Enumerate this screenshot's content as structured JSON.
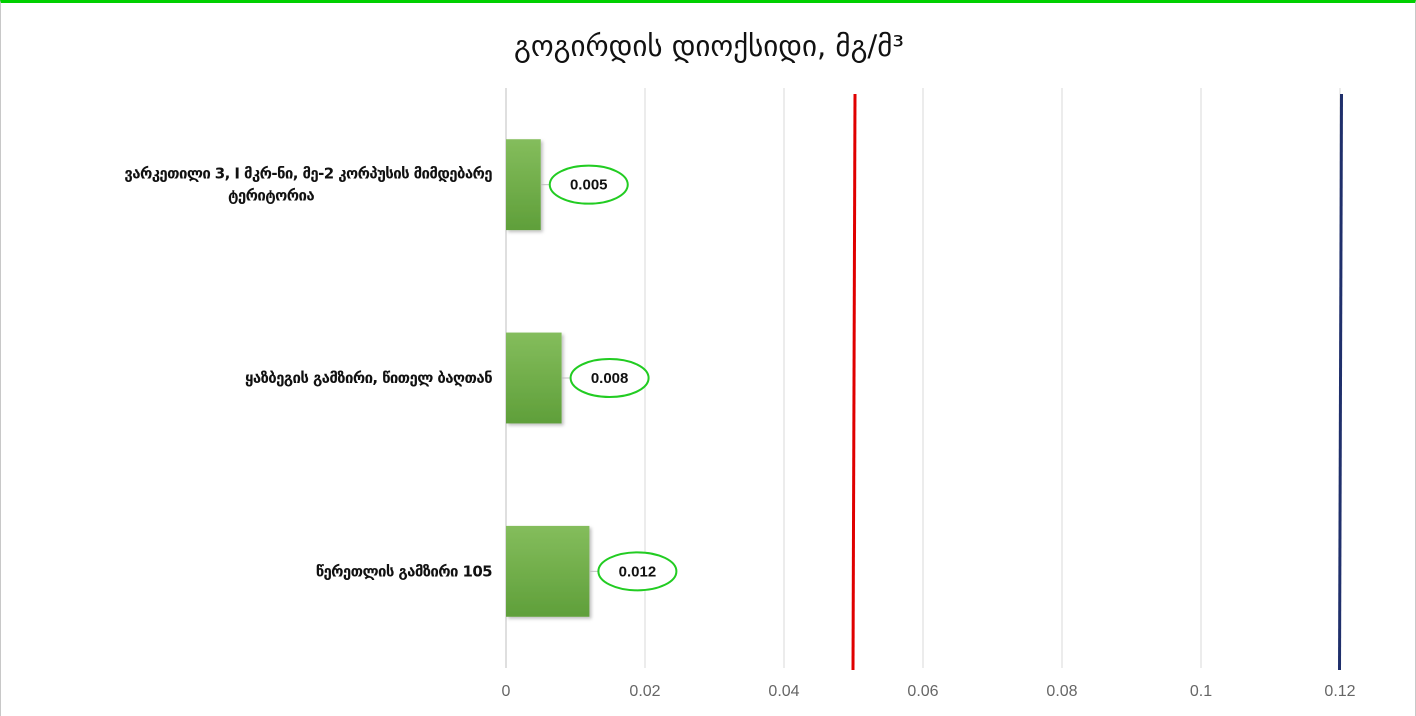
{
  "chart_data": {
    "type": "bar",
    "orientation": "horizontal",
    "title": "გოგირდის დიოქსიდი, მგ/მ³",
    "categories": [
      [
        "ვარკეთილი 3, I მკრ-ნი, მე-2 კორპუსის მიმდებარე",
        "ტერიტორია"
      ],
      [
        "ყაზბეგის გამზირი, წითელ ბაღთან"
      ],
      [
        "წერეთლის გამზირი 105"
      ]
    ],
    "values": [
      0.005,
      0.008,
      0.012
    ],
    "data_labels": [
      "0.005",
      "0.008",
      "0.012"
    ],
    "xlim": [
      0,
      0.12
    ],
    "x_ticks": [
      0,
      0.02,
      0.04,
      0.06,
      0.08,
      0.1,
      0.12
    ],
    "x_tick_labels": [
      "0",
      "0.02",
      "0.04",
      "0.06",
      "0.08",
      "0.1",
      "0.12"
    ],
    "reference_lines": [
      {
        "value": 0.05,
        "color": "#e00000"
      },
      {
        "value": 0.12,
        "color": "#1f2f6b"
      }
    ],
    "grid": true,
    "colors": {
      "bar": "#6aab45",
      "bar_light": "#86bf5f",
      "label_outline": "#22cc22",
      "gridline": "#d9d9d9",
      "accent_border": "#00d000"
    }
  }
}
